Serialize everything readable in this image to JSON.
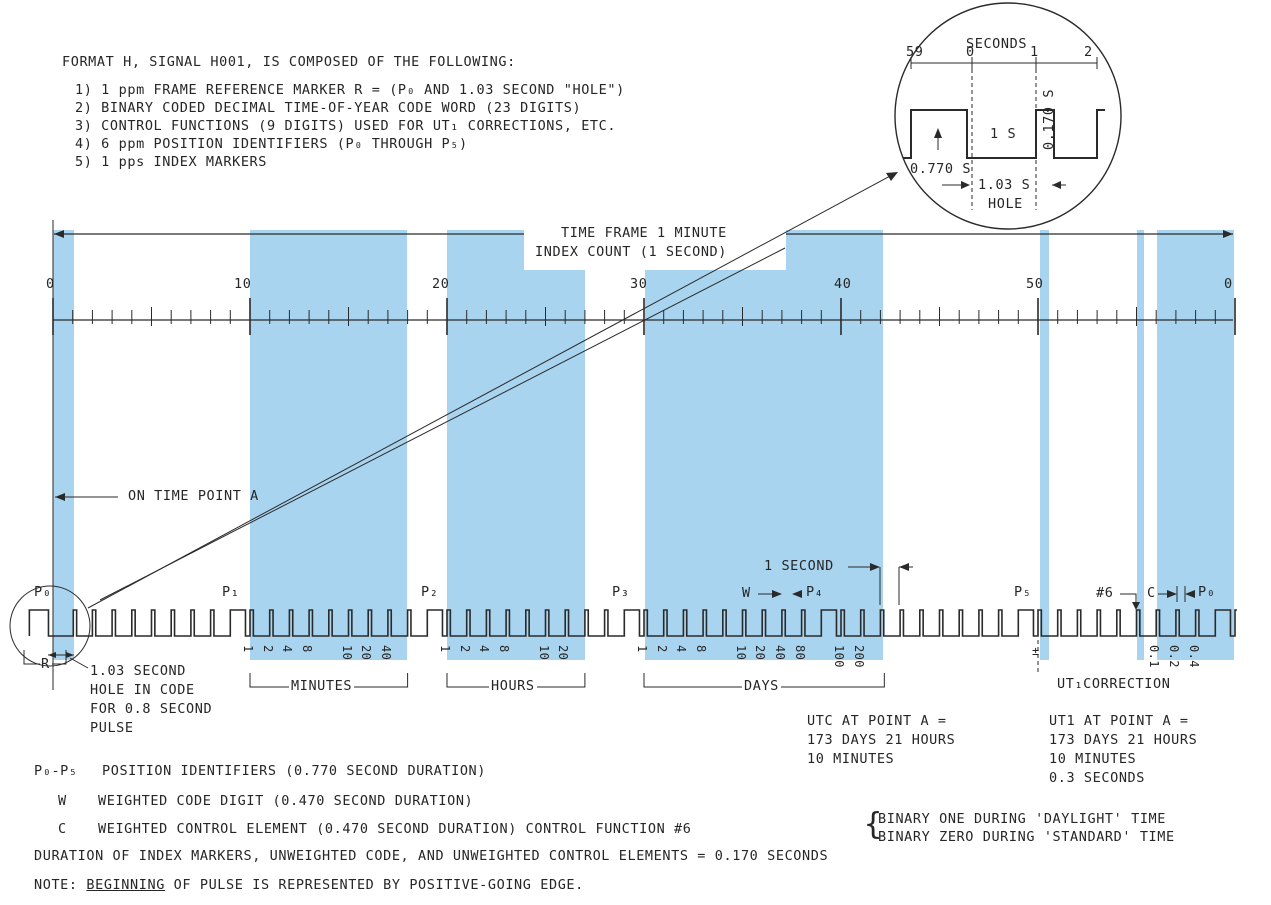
{
  "header": {
    "title": "FORMAT H, SIGNAL H001, IS COMPOSED OF THE FOLLOWING:",
    "items": [
      "1) 1 ppm FRAME REFERENCE MARKER R = (P₀ AND 1.03 SECOND \"HOLE\")",
      "2) BINARY CODED DECIMAL TIME-OF-YEAR CODE WORD (23 DIGITS)",
      "3) CONTROL FUNCTIONS (9 DIGITS) USED FOR UT₁ CORRECTIONS, ETC.",
      "4) 6 ppm POSITION IDENTIFIERS (P₀ THROUGH P₅)",
      "5) 1 pps INDEX MARKERS"
    ]
  },
  "inset": {
    "title": "SECONDS",
    "ticks": [
      "59",
      "0",
      "1",
      "2"
    ],
    "one_s": "1 S",
    "label_0770": "0.770 S",
    "label_0170": "0.170 S",
    "label_103": "1.03 S",
    "label_hole": "HOLE"
  },
  "timeline": {
    "frame_label": "TIME FRAME 1 MINUTE",
    "index_label": "INDEX COUNT (1 SECOND)",
    "ticks": [
      "0",
      "10",
      "20",
      "30",
      "40",
      "50",
      "0"
    ]
  },
  "on_time_point": "ON TIME POINT A",
  "one_second": "1 SECOND",
  "markers": {
    "p0": "P₀",
    "p1": "P₁",
    "p2": "P₂",
    "p3": "P₃",
    "p4": "P₄",
    "p5": "P₅",
    "p0_end": "P₀",
    "w": "W",
    "c": "C",
    "hash6": "#6"
  },
  "weights": {
    "minutes": [
      "1",
      "2",
      "4",
      "8",
      "10",
      "20",
      "40"
    ],
    "hours": [
      "1",
      "2",
      "4",
      "8",
      "10",
      "20"
    ],
    "days": [
      "1",
      "2",
      "4",
      "8",
      "10",
      "20",
      "40",
      "80",
      "100",
      "200"
    ],
    "ut1_sign": "±",
    "ut1": [
      "0.1",
      "0.2",
      "0.4"
    ]
  },
  "groups": {
    "r": "R",
    "minutes": "MINUTES",
    "hours": "HOURS",
    "days": "DAYS",
    "ut1": "UT₁CORRECTION"
  },
  "hole_note": [
    "1.03 SECOND",
    "HOLE IN CODE",
    "FOR 0.8 SECOND",
    "PULSE"
  ],
  "utc_note": [
    "UTC AT POINT A =",
    "173 DAYS 21 HOURS",
    "10 MINUTES"
  ],
  "ut1_note": [
    "UT1 AT POINT A =",
    "173 DAYS 21 HOURS",
    "10 MINUTES",
    "0.3 SECONDS"
  ],
  "legend": {
    "p_term": "P₀-P₅",
    "p_desc": "POSITION IDENTIFIERS (0.770 SECOND DURATION)",
    "w_term": "W",
    "w_desc": "WEIGHTED CODE DIGIT (0.470 SECOND DURATION)",
    "c_term": "C",
    "c_desc": "WEIGHTED CONTROL ELEMENT (0.470 SECOND DURATION) CONTROL FUNCTION #6",
    "c_opt1": "BINARY ONE DURING 'DAYLIGHT' TIME",
    "c_opt2": "BINARY ZERO DURING 'STANDARD' TIME",
    "duration": "DURATION OF INDEX MARKERS, UNWEIGHTED CODE, AND UNWEIGHTED CONTROL ELEMENTS = 0.170 SECONDS"
  },
  "note": {
    "label": "NOTE:",
    "emph": "BEGINNING",
    "rest": "OF PULSE IS REPRESENTED BY POSITIVE-GOING EDGE."
  },
  "colors": {
    "band": "#a9d4ef",
    "ink": "#2a2a2a"
  }
}
